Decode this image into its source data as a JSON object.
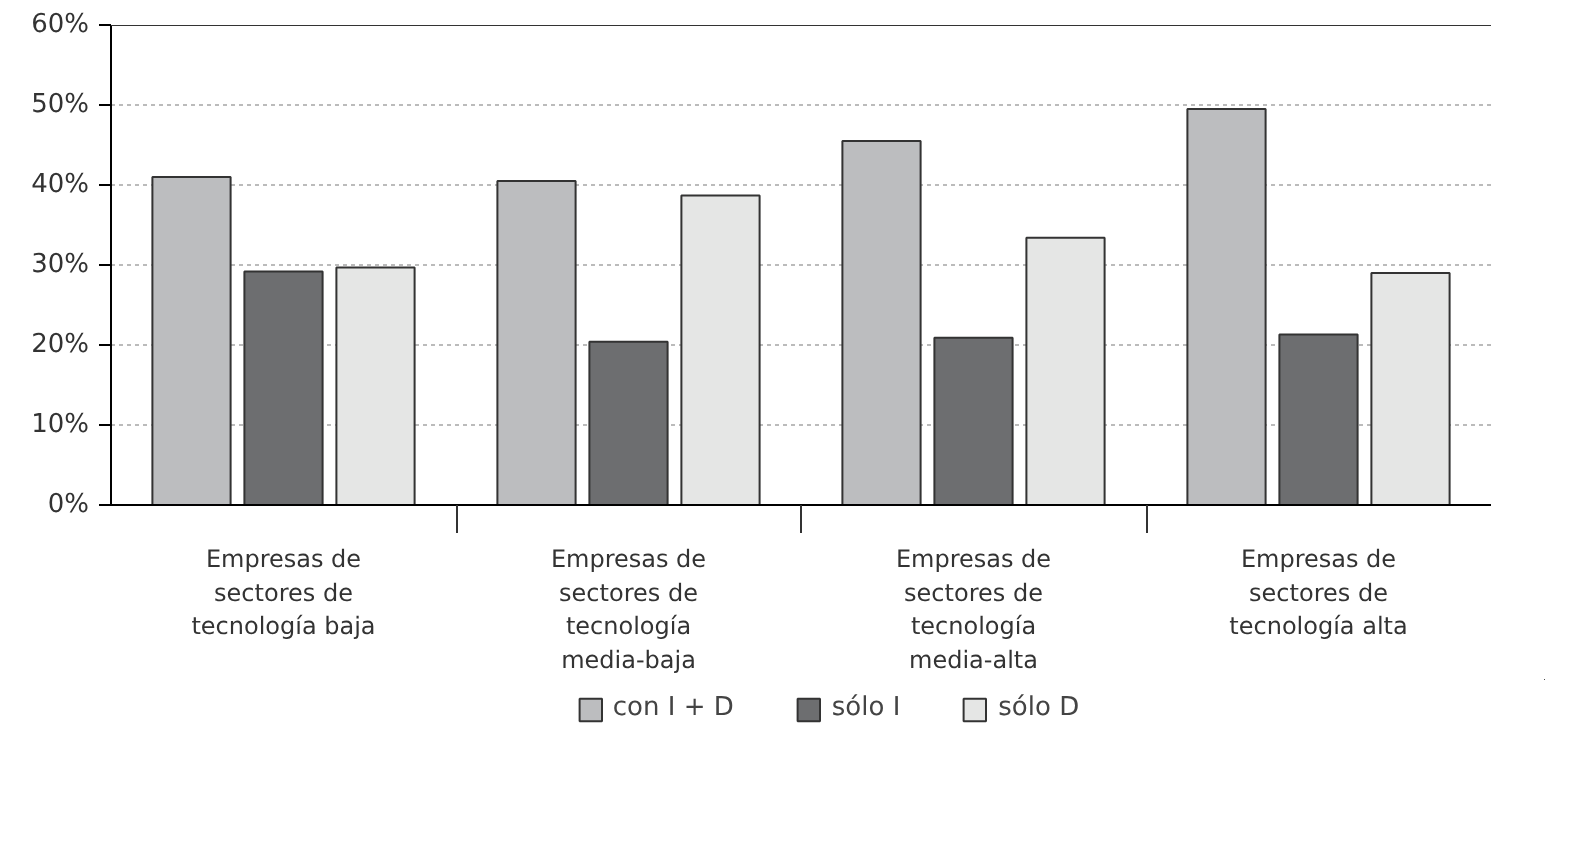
{
  "chart_data": {
    "type": "bar",
    "categories": [
      "Empresas de\nsectores de\ntecnología baja",
      "Empresas de\nsectores de\ntecnología\nmedia-baja",
      "Empresas de\nsectores de\ntecnología\nmedia-alta",
      "Empresas de\nsectores de\ntecnología alta"
    ],
    "series": [
      {
        "name": "con I + D",
        "color": "#bcbdbf",
        "values": [
          41.0,
          40.5,
          45.5,
          49.5
        ]
      },
      {
        "name": "sólo I",
        "color": "#6d6e70",
        "values": [
          29.2,
          20.4,
          20.9,
          21.3
        ]
      },
      {
        "name": "sólo D",
        "color": "#e5e6e5",
        "values": [
          29.7,
          38.7,
          33.4,
          29.0
        ]
      }
    ],
    "ylim": [
      0,
      60
    ],
    "yticks": [
      {
        "value": 0,
        "label": "0%"
      },
      {
        "value": 10,
        "label": "10%"
      },
      {
        "value": 20,
        "label": "20%"
      },
      {
        "value": 30,
        "label": "30%"
      },
      {
        "value": 40,
        "label": "40%"
      },
      {
        "value": 50,
        "label": "50%"
      },
      {
        "value": 60,
        "label": "60%"
      }
    ],
    "grid": "y",
    "legend": "bottom"
  }
}
